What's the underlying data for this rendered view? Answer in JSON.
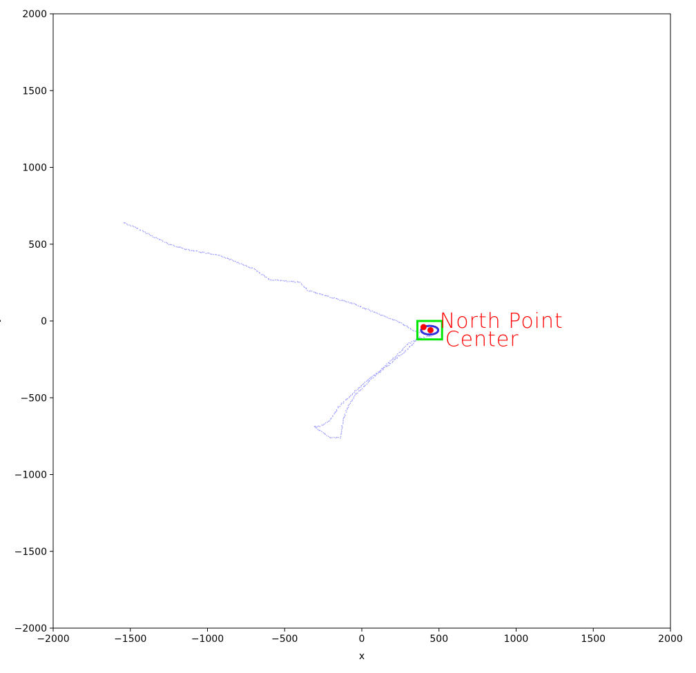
{
  "chart_data": {
    "type": "scatter",
    "title": "",
    "xlabel": "x",
    "ylabel": "y",
    "xlim": [
      -2000,
      2000
    ],
    "ylim": [
      -2000,
      2000
    ],
    "grid": false,
    "legend": "none",
    "xticks": [
      -2000,
      -1500,
      -1000,
      -500,
      0,
      500,
      1000,
      1500,
      2000
    ],
    "yticks": [
      -2000,
      -1500,
      -1000,
      -500,
      0,
      500,
      1000,
      1500,
      2000
    ],
    "xtick_labels": [
      "−2000",
      "−1500",
      "−1000",
      "−500",
      "0",
      "500",
      "1000",
      "1500",
      "2000"
    ],
    "ytick_labels": [
      "−2000",
      "−1500",
      "−1000",
      "−500",
      "0",
      "500",
      "1000",
      "1500",
      "2000"
    ],
    "trajectory": {
      "color": "#9999ff",
      "path_points": [
        [
          -1540,
          640
        ],
        [
          -1450,
          600
        ],
        [
          -1350,
          550
        ],
        [
          -1250,
          500
        ],
        [
          -1150,
          470
        ],
        [
          -1000,
          440
        ],
        [
          -900,
          420
        ],
        [
          -800,
          380
        ],
        [
          -700,
          340
        ],
        [
          -600,
          270
        ],
        [
          -500,
          260
        ],
        [
          -400,
          250
        ],
        [
          -350,
          200
        ],
        [
          -250,
          170
        ],
        [
          -150,
          140
        ],
        [
          -50,
          110
        ],
        [
          50,
          70
        ],
        [
          150,
          30
        ],
        [
          250,
          -10
        ],
        [
          330,
          -60
        ],
        [
          400,
          -80
        ],
        [
          450,
          -100
        ],
        [
          380,
          -110
        ],
        [
          300,
          -150
        ],
        [
          220,
          -230
        ],
        [
          120,
          -320
        ],
        [
          0,
          -420
        ],
        [
          -100,
          -510
        ],
        [
          -150,
          -560
        ],
        [
          -200,
          -640
        ],
        [
          -250,
          -680
        ],
        [
          -310,
          -690
        ],
        [
          -260,
          -720
        ],
        [
          -200,
          -760
        ],
        [
          -140,
          -760
        ],
        [
          -120,
          -640
        ],
        [
          -90,
          -560
        ],
        [
          -40,
          -480
        ],
        [
          60,
          -380
        ],
        [
          180,
          -280
        ],
        [
          300,
          -180
        ],
        [
          380,
          -100
        ]
      ],
      "loop_center": [
        440,
        -60
      ],
      "loop_radius": [
        55,
        28
      ]
    },
    "box": {
      "color": "#00e600",
      "x0": 360,
      "y0": -120,
      "x1": 520,
      "y1": 0
    },
    "points": [
      {
        "x": 400,
        "y": -40,
        "color": "#ff0000"
      },
      {
        "x": 445,
        "y": -60,
        "color": "#ff0000"
      }
    ],
    "annotations": [
      {
        "text": "North Point",
        "x": 505,
        "y": 0,
        "color": "#ff0000"
      },
      {
        "text": "Center",
        "x": 540,
        "y": -120,
        "color": "#ff0000"
      }
    ]
  }
}
